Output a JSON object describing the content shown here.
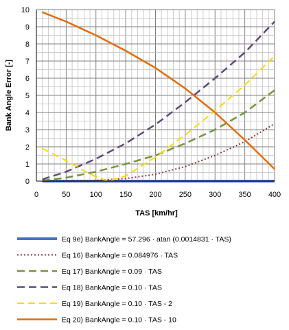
{
  "chart_data": {
    "type": "line",
    "xlabel": "TAS [km/hr]",
    "ylabel": "Bank Angle Error [-]",
    "xlim": [
      0,
      400
    ],
    "ylim": [
      0,
      10
    ],
    "x_ticks": [
      0,
      50,
      100,
      150,
      200,
      250,
      300,
      350,
      400
    ],
    "y_ticks": [
      0,
      1,
      2,
      3,
      4,
      5,
      6,
      7,
      8,
      9,
      10
    ],
    "grid": true,
    "legend_position": "bottom",
    "series": [
      {
        "name": "Eq 9e) BankAngle = 57.296 · atan (0.0014831 · TAS)",
        "color": "#4472C4",
        "dash": "solid",
        "width": 4,
        "points": [
          [
            10,
            0.0
          ],
          [
            100,
            0.0
          ],
          [
            200,
            0.0
          ],
          [
            300,
            0.0
          ],
          [
            400,
            0.0
          ]
        ]
      },
      {
        "name": "Eq 16) BankAngle = 0.084976 · TAS",
        "color": "#953735",
        "dash": "dot",
        "width": 2,
        "points": [
          [
            10,
            0.0
          ],
          [
            50,
            0.0
          ],
          [
            100,
            0.05
          ],
          [
            150,
            0.15
          ],
          [
            200,
            0.4
          ],
          [
            250,
            0.85
          ],
          [
            300,
            1.5
          ],
          [
            350,
            2.3
          ],
          [
            400,
            3.35
          ]
        ]
      },
      {
        "name": "Eq 17) BankAngle = 0.09 · TAS",
        "color": "#77933C",
        "dash": "dash",
        "width": 2.5,
        "points": [
          [
            10,
            0.03
          ],
          [
            50,
            0.2
          ],
          [
            100,
            0.55
          ],
          [
            150,
            1.0
          ],
          [
            200,
            1.5
          ],
          [
            250,
            2.2
          ],
          [
            300,
            3.0
          ],
          [
            350,
            4.0
          ],
          [
            400,
            5.3
          ]
        ]
      },
      {
        "name": "Eq 18) BankAngle = 0.10 · TAS",
        "color": "#604A7B",
        "dash": "dash",
        "width": 2.5,
        "points": [
          [
            10,
            0.1
          ],
          [
            50,
            0.55
          ],
          [
            100,
            1.3
          ],
          [
            150,
            2.2
          ],
          [
            200,
            3.3
          ],
          [
            250,
            4.6
          ],
          [
            300,
            6.0
          ],
          [
            350,
            7.5
          ],
          [
            400,
            9.3
          ]
        ]
      },
      {
        "name": "Eq 19) BankAngle = 0.10 · TAS - 2",
        "color": "#FFD700",
        "dash": "dash",
        "width": 2,
        "points": [
          [
            10,
            1.9
          ],
          [
            50,
            1.2
          ],
          [
            80,
            0.6
          ],
          [
            100,
            0.25
          ],
          [
            120,
            0.0
          ],
          [
            150,
            0.3
          ],
          [
            200,
            1.4
          ],
          [
            250,
            2.7
          ],
          [
            300,
            4.1
          ],
          [
            350,
            5.6
          ],
          [
            400,
            7.3
          ]
        ]
      },
      {
        "name": "Eq 20) BankAngle = 0.10 · TAS - 10",
        "color": "#E46C0A",
        "dash": "solid",
        "width": 2.5,
        "points": [
          [
            10,
            9.85
          ],
          [
            50,
            9.3
          ],
          [
            100,
            8.5
          ],
          [
            150,
            7.6
          ],
          [
            200,
            6.6
          ],
          [
            250,
            5.4
          ],
          [
            300,
            4.0
          ],
          [
            350,
            2.4
          ],
          [
            400,
            0.7
          ]
        ]
      }
    ]
  }
}
